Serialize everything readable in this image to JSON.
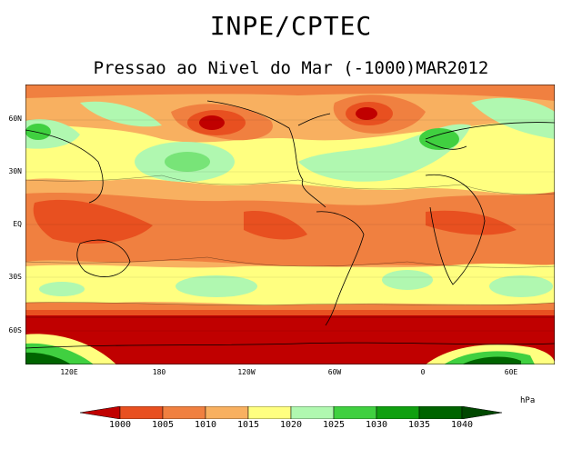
{
  "header": {
    "title": "INPE/CPTEC",
    "subtitle": "Pressao ao Nivel do Mar (-1000)MAR2012"
  },
  "map": {
    "lat_labels": [
      "60N",
      "30N",
      "EQ",
      "30S",
      "60S"
    ],
    "lon_labels": [
      "120E",
      "180",
      "120W",
      "60W",
      "0",
      "60E"
    ]
  },
  "legend": {
    "unit": "hPa",
    "levels": [
      "1000",
      "1005",
      "1010",
      "1015",
      "1020",
      "1025",
      "1030",
      "1035",
      "1040"
    ],
    "colors": [
      "#c00000",
      "#e85020",
      "#f08040",
      "#f8b060",
      "#ffff80",
      "#b0f8b0",
      "#40d040",
      "#10a010",
      "#006400",
      "#004800"
    ]
  }
}
